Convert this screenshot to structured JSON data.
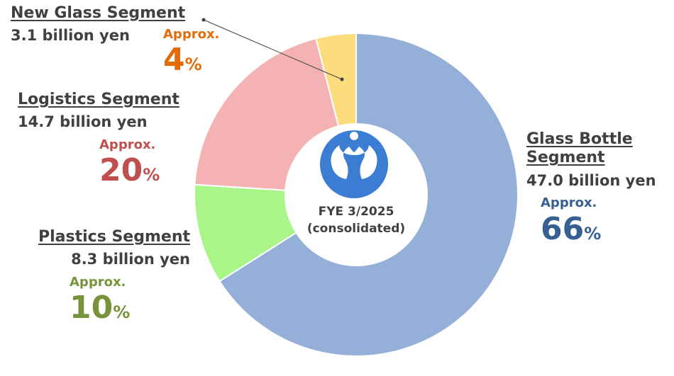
{
  "chart_data": {
    "type": "donut",
    "categories": [
      "Glass Bottle Segment",
      "Plastics Segment",
      "Logistics Segment",
      "New Glass Segment"
    ],
    "amounts": [
      "47.0 billion yen",
      "8.3 billion yen",
      "14.7 billion yen",
      "3.1 billion yen"
    ],
    "values": [
      66,
      10,
      20,
      4
    ],
    "value_prefix": "Approx.",
    "value_unit": "%",
    "colors": [
      "#95b0d8",
      "#a9f58a",
      "#f4b2b2",
      "#fddc7e"
    ],
    "label_colors": [
      "#366092",
      "#77933c",
      "#c0504d",
      "#e36c09"
    ],
    "center_text": [
      "FYE 3/2025",
      "(consolidated)"
    ]
  }
}
